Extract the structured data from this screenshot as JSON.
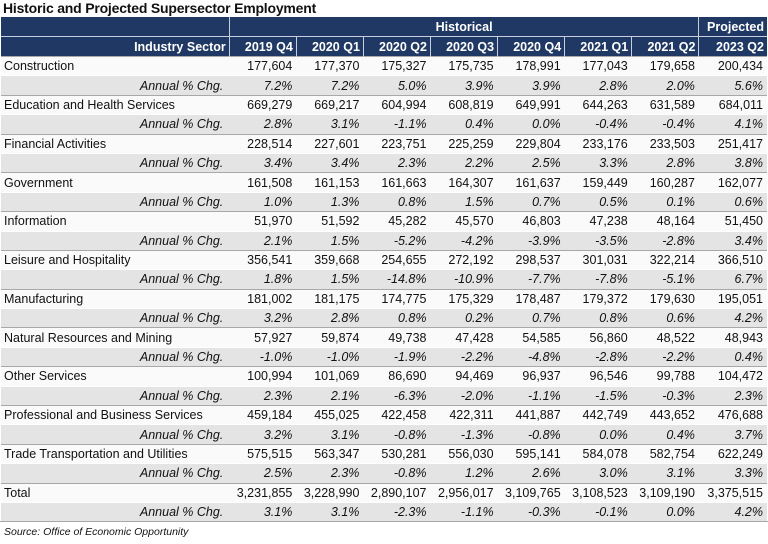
{
  "title": "Historic and Projected Supersector Employment",
  "header": {
    "sector_label": "Industry Sector",
    "historical_label": "Historical",
    "projected_label": "Projected",
    "periods": [
      "2019 Q4",
      "2020 Q1",
      "2020 Q2",
      "2020 Q3",
      "2020 Q4",
      "2021 Q1",
      "2021 Q2",
      "2023 Q2"
    ]
  },
  "pct_label": "Annual % Chg.",
  "rows": [
    {
      "sector": "Construction",
      "values": [
        "177,604",
        "177,370",
        "175,327",
        "175,735",
        "178,991",
        "177,043",
        "179,658",
        "200,434"
      ],
      "pct": [
        "7.2%",
        "7.2%",
        "5.0%",
        "3.9%",
        "3.9%",
        "2.8%",
        "2.0%",
        "5.6%"
      ]
    },
    {
      "sector": "Education and Health Services",
      "values": [
        "669,279",
        "669,217",
        "604,994",
        "608,819",
        "649,991",
        "644,263",
        "631,589",
        "684,011"
      ],
      "pct": [
        "2.8%",
        "3.1%",
        "-1.1%",
        "0.4%",
        "0.0%",
        "-0.4%",
        "-0.4%",
        "4.1%"
      ]
    },
    {
      "sector": "Financial Activities",
      "values": [
        "228,514",
        "227,601",
        "223,751",
        "225,259",
        "229,804",
        "233,176",
        "233,503",
        "251,417"
      ],
      "pct": [
        "3.4%",
        "3.4%",
        "2.3%",
        "2.2%",
        "2.5%",
        "3.3%",
        "2.8%",
        "3.8%"
      ]
    },
    {
      "sector": "Government",
      "values": [
        "161,508",
        "161,153",
        "161,663",
        "164,307",
        "161,637",
        "159,449",
        "160,287",
        "162,077"
      ],
      "pct": [
        "1.0%",
        "1.3%",
        "0.8%",
        "1.5%",
        "0.7%",
        "0.5%",
        "0.1%",
        "0.6%"
      ]
    },
    {
      "sector": "Information",
      "values": [
        "51,970",
        "51,592",
        "45,282",
        "45,570",
        "46,803",
        "47,238",
        "48,164",
        "51,450"
      ],
      "pct": [
        "2.1%",
        "1.5%",
        "-5.2%",
        "-4.2%",
        "-3.9%",
        "-3.5%",
        "-2.8%",
        "3.4%"
      ]
    },
    {
      "sector": "Leisure and Hospitality",
      "values": [
        "356,541",
        "359,668",
        "254,655",
        "272,192",
        "298,537",
        "301,031",
        "322,214",
        "366,510"
      ],
      "pct": [
        "1.8%",
        "1.5%",
        "-14.8%",
        "-10.9%",
        "-7.7%",
        "-7.8%",
        "-5.1%",
        "6.7%"
      ]
    },
    {
      "sector": "Manufacturing",
      "values": [
        "181,002",
        "181,175",
        "174,775",
        "175,329",
        "178,487",
        "179,372",
        "179,630",
        "195,051"
      ],
      "pct": [
        "3.2%",
        "2.8%",
        "0.8%",
        "0.2%",
        "0.7%",
        "0.8%",
        "0.6%",
        "4.2%"
      ]
    },
    {
      "sector": "Natural Resources and Mining",
      "values": [
        "57,927",
        "59,874",
        "49,738",
        "47,428",
        "54,585",
        "56,860",
        "48,522",
        "48,943"
      ],
      "pct": [
        "-1.0%",
        "-1.0%",
        "-1.9%",
        "-2.2%",
        "-4.8%",
        "-2.8%",
        "-2.2%",
        "0.4%"
      ]
    },
    {
      "sector": "Other Services",
      "values": [
        "100,994",
        "101,069",
        "86,690",
        "94,469",
        "96,937",
        "96,546",
        "99,788",
        "104,472"
      ],
      "pct": [
        "2.3%",
        "2.1%",
        "-6.3%",
        "-2.0%",
        "-1.1%",
        "-1.5%",
        "-0.3%",
        "2.3%"
      ]
    },
    {
      "sector": "Professional and Business Services",
      "values": [
        "459,184",
        "455,025",
        "422,458",
        "422,311",
        "441,887",
        "442,749",
        "443,652",
        "476,688"
      ],
      "pct": [
        "3.2%",
        "3.1%",
        "-0.8%",
        "-1.3%",
        "-0.8%",
        "0.0%",
        "0.4%",
        "3.7%"
      ]
    },
    {
      "sector": "Trade Transportation and Utilities",
      "values": [
        "575,515",
        "563,347",
        "530,281",
        "556,030",
        "595,141",
        "584,078",
        "582,754",
        "622,249"
      ],
      "pct": [
        "2.5%",
        "2.3%",
        "-0.8%",
        "1.2%",
        "2.6%",
        "3.0%",
        "3.1%",
        "3.3%"
      ]
    },
    {
      "sector": "Total",
      "values": [
        "3,231,855",
        "3,228,990",
        "2,890,107",
        "2,956,017",
        "3,109,765",
        "3,108,523",
        "3,109,190",
        "3,375,515"
      ],
      "pct": [
        "3.1%",
        "3.1%",
        "-2.3%",
        "-1.1%",
        "-0.3%",
        "-0.1%",
        "0.0%",
        "4.2%"
      ]
    }
  ],
  "source": "Source: Office of Economic Opportunity"
}
